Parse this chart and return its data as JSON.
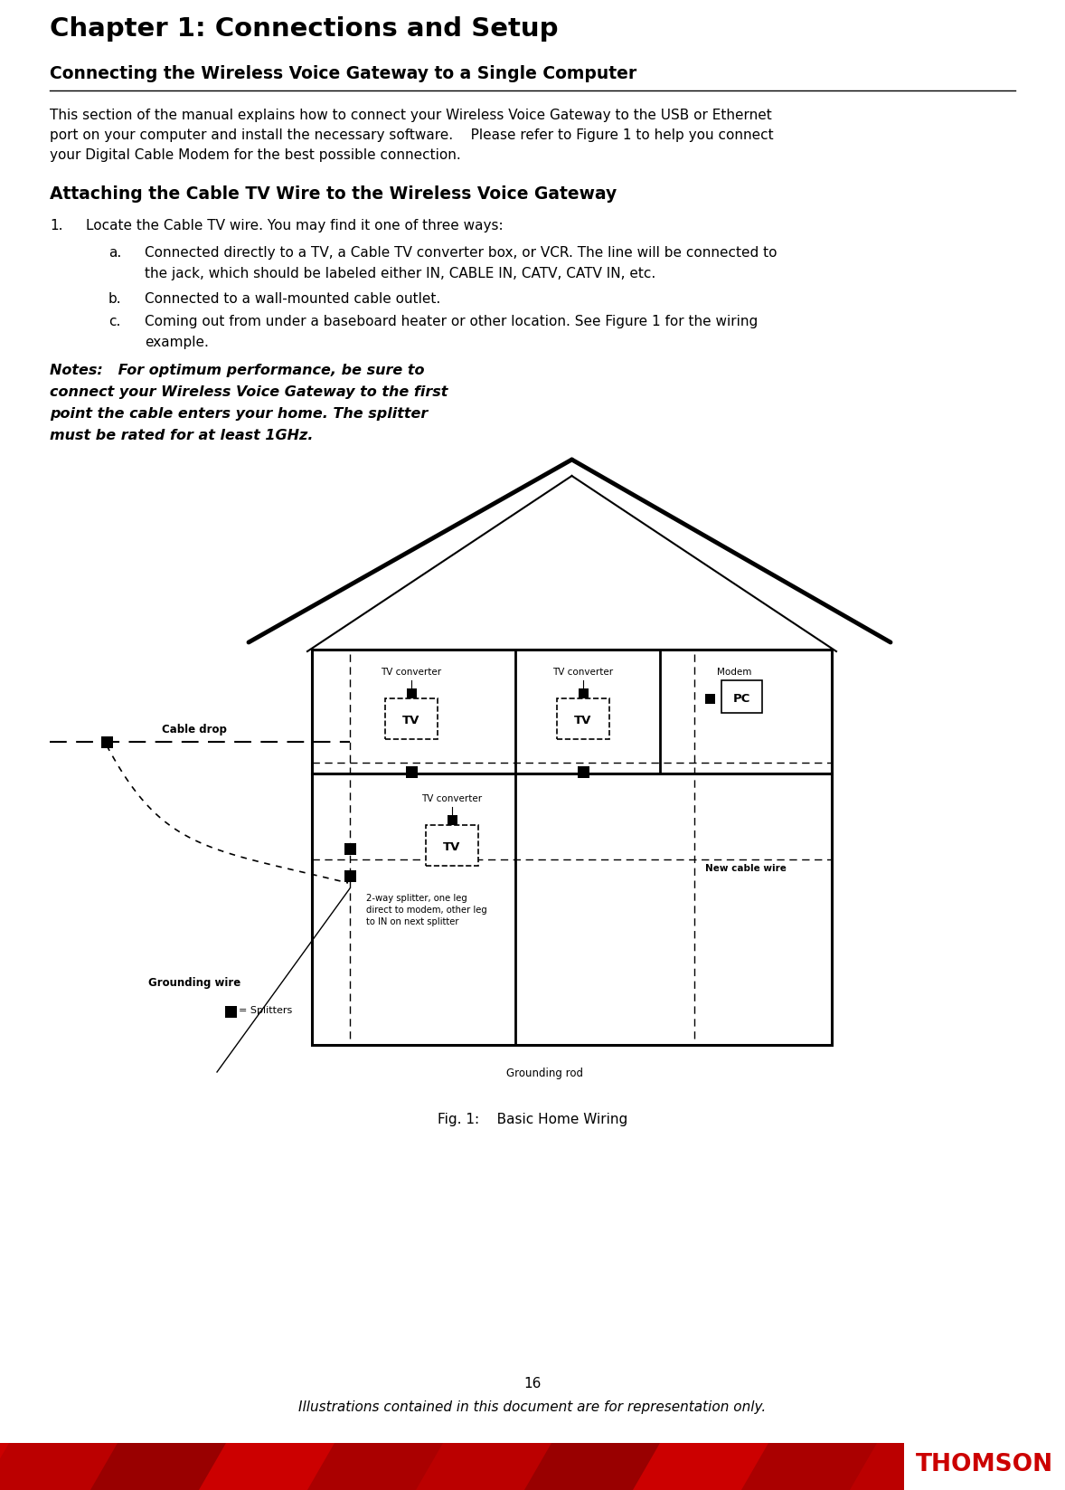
{
  "title": "Chapter 1: Connections and Setup",
  "subtitle": "Connecting the Wireless Voice Gateway to a Single Computer",
  "body_line1": "This section of the manual explains how to connect your Wireless Voice Gateway to the USB or Ethernet",
  "body_line2": "port on your computer and install the necessary software.    Please refer to Figure 1 to help you connect",
  "body_line3": "your Digital Cable Modem for the best possible connection.",
  "section2_title": "Attaching the Cable TV Wire to the Wireless Voice Gateway",
  "item1": "Locate the Cable TV wire. You may find it one of three ways:",
  "item_a1": "Connected directly to a TV, a Cable TV converter box, or VCR. The line will be connected to",
  "item_a2": "the jack, which should be labeled either IN, CABLE IN, CATV, CATV IN, etc.",
  "item_b": "Connected to a wall-mounted cable outlet.",
  "item_c1": "Coming out from under a baseboard heater or other location. See Figure 1 for the wiring",
  "item_c2": "example.",
  "notes_line1": "Notes:   For optimum performance, be sure to",
  "notes_line2": "connect your Wireless Voice Gateway to the first",
  "notes_line3": "point the cable enters your home. The splitter",
  "notes_line4": "must be rated for at least 1GHz.",
  "fig_caption": "Fig. 1:    Basic Home Wiring",
  "page_number": "16",
  "footer_text": "Illustrations contained in this document are for representation only.",
  "thomson_text": "THOMSON",
  "bg_color": "#ffffff",
  "text_color": "#000000",
  "red_color": "#cc0000",
  "dark_red_color": "#990000"
}
